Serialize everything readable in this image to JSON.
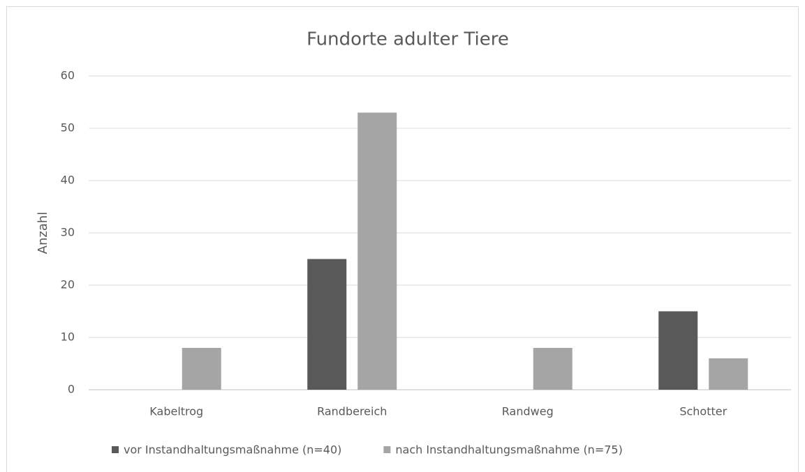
{
  "chart_data": {
    "type": "bar",
    "title": "Fundorte adulter Tiere",
    "y_label": "Anzahl",
    "categories": [
      "Kabeltrog",
      "Randbereich",
      "Randweg",
      "Schotter"
    ],
    "series": [
      {
        "name": "vor Instandhaltungsmaßnahme (n=40)",
        "color": "#595959",
        "values": [
          0,
          25,
          0,
          15
        ]
      },
      {
        "name": "nach Instandhaltungsmaßnahme (n=75)",
        "color": "#a5a5a5",
        "values": [
          8,
          53,
          8,
          6
        ]
      }
    ],
    "ylim": [
      0,
      60
    ],
    "yticks": [
      0,
      10,
      20,
      30,
      40,
      50,
      60
    ],
    "grid": true,
    "legend": "bottom"
  }
}
